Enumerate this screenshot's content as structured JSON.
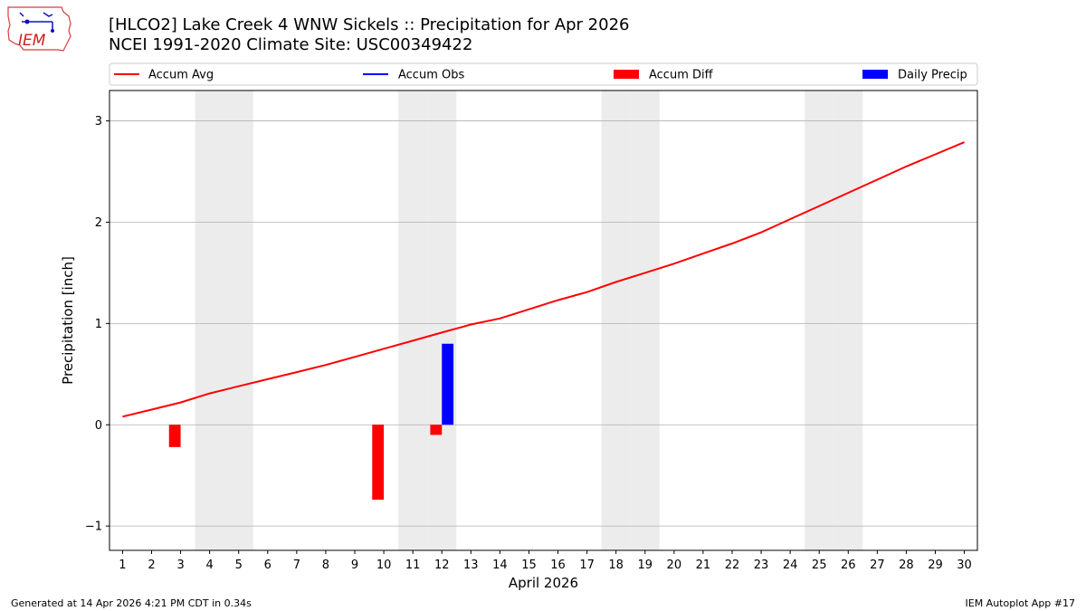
{
  "logo": {
    "text": "IEM"
  },
  "footer": {
    "left": "Generated at 14 Apr 2026 4:21 PM CDT in 0.34s",
    "right": "IEM Autoplot App #17"
  },
  "colors": {
    "avg": "#ff0000",
    "obs": "#0000ff",
    "diff": "#ff0000",
    "daily": "#0000ff",
    "weekend": "#ececec",
    "grid": "#b0b0b0"
  },
  "chart_data": {
    "type": "bar",
    "title": "[HLCO2] Lake Creek 4 WNW Sickels :: Precipitation for Apr 2026",
    "subtitle": "NCEI 1991-2020 Climate Site: USC00349422",
    "xlabel": "April 2026",
    "ylabel": "Precipitation [inch]",
    "ylim": [
      -1.24,
      3.3
    ],
    "xlim": [
      0.55,
      30.45
    ],
    "yticks": [
      -1,
      0,
      1,
      2,
      3
    ],
    "ytick_labels": [
      "−1",
      "0",
      "1",
      "2",
      "3"
    ],
    "x": [
      1,
      2,
      3,
      4,
      5,
      6,
      7,
      8,
      9,
      10,
      11,
      12,
      13,
      14,
      15,
      16,
      17,
      18,
      19,
      20,
      21,
      22,
      23,
      24,
      25,
      26,
      27,
      28,
      29,
      30
    ],
    "xtick_labels": [
      "1",
      "2",
      "3",
      "4",
      "5",
      "6",
      "7",
      "8",
      "9",
      "10",
      "11",
      "12",
      "13",
      "14",
      "15",
      "16",
      "17",
      "18",
      "19",
      "20",
      "21",
      "22",
      "23",
      "24",
      "25",
      "26",
      "27",
      "28",
      "29",
      "30"
    ],
    "legend": [
      "Accum Avg",
      "Accum Obs",
      "Accum Diff",
      "Daily Precip"
    ],
    "legend_location": "top",
    "weekend_days": [
      4,
      5,
      11,
      12,
      18,
      19,
      25,
      26
    ],
    "series": [
      {
        "name": "Accum Avg",
        "type": "line",
        "values": [
          0.08,
          0.15,
          0.22,
          0.31,
          0.38,
          0.45,
          0.52,
          0.59,
          0.67,
          0.75,
          0.83,
          0.91,
          0.99,
          1.05,
          1.14,
          1.23,
          1.31,
          1.41,
          1.5,
          1.59,
          1.69,
          1.79,
          1.9,
          2.03,
          2.16,
          2.29,
          2.42,
          2.55,
          2.67,
          2.79
        ]
      },
      {
        "name": "Accum Diff",
        "type": "bar",
        "offset": -0.2,
        "points": [
          {
            "x": 3,
            "value": -0.22
          },
          {
            "x": 10,
            "value": -0.74
          },
          {
            "x": 12,
            "value": -0.1
          }
        ]
      },
      {
        "name": "Daily Precip",
        "type": "bar",
        "offset": 0.2,
        "points": [
          {
            "x": 12,
            "value": 0.8
          }
        ]
      }
    ]
  }
}
